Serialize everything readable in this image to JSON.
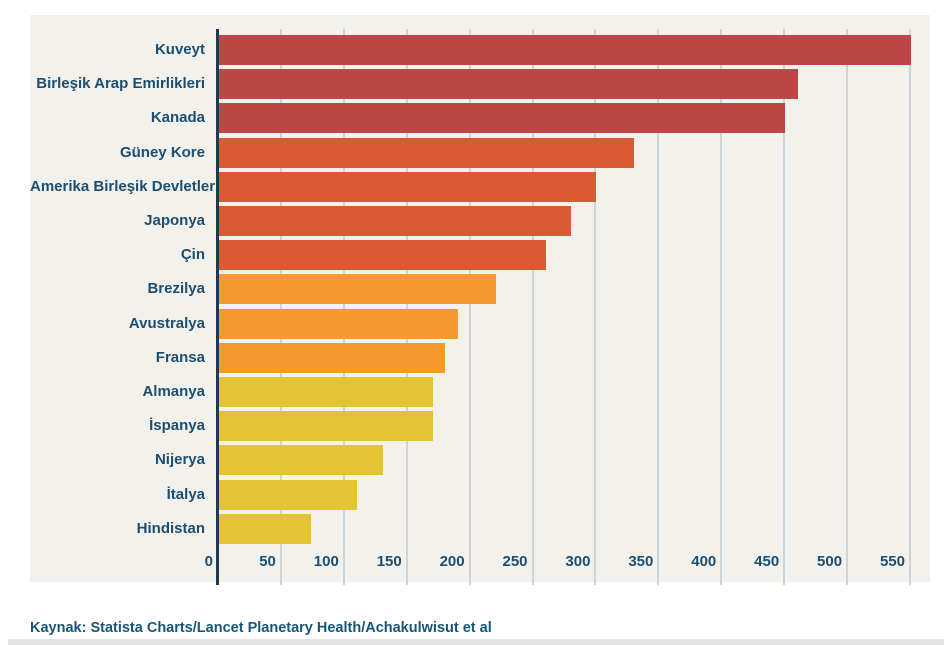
{
  "page": {
    "background": "#ffffff",
    "footer": {
      "text": "Kaynak: Statista Charts/Lancet Planetary Health/Achakulwisut et al"
    }
  },
  "chart_data": {
    "type": "bar",
    "orientation": "horizontal",
    "title": "",
    "xlabel": "",
    "ylabel": "",
    "categories": [
      "Kuveyt",
      "Birleşik Arap Emirlikleri",
      "Kanada",
      "Güney Kore",
      "Amerika Birleşik Devletleri",
      "Japonya",
      "Çin",
      "Brezilya",
      "Avustralya",
      "Fransa",
      "Almanya",
      "İspanya",
      "Nijerya",
      "İtalya",
      "Hindistan"
    ],
    "values": [
      550,
      460,
      450,
      330,
      300,
      280,
      260,
      220,
      190,
      180,
      170,
      170,
      130,
      110,
      73
    ],
    "bar_colors": [
      "#bc4746",
      "#bc4746",
      "#bc4746",
      "#da5b33",
      "#da5b33",
      "#da5b33",
      "#da5b33",
      "#f7992d",
      "#f7992d",
      "#f7992d",
      "#e4c335",
      "#e4c335",
      "#e4c335",
      "#e4c335",
      "#e4c335"
    ],
    "x_ticks": [
      0,
      50,
      100,
      150,
      200,
      250,
      300,
      350,
      400,
      450,
      500,
      550
    ],
    "xlim": [
      0,
      566
    ],
    "grid": true,
    "legend": "none",
    "colors": {
      "plot_background": "#f2f1ec",
      "label_color": "#1b4e70",
      "tick_label_color": "#1b4e70",
      "axis_line_color": "#21394e",
      "gridline_color": "#ccd6da",
      "footer_color": "#155677",
      "bottom_strip_color": "#e4e4e4"
    }
  }
}
